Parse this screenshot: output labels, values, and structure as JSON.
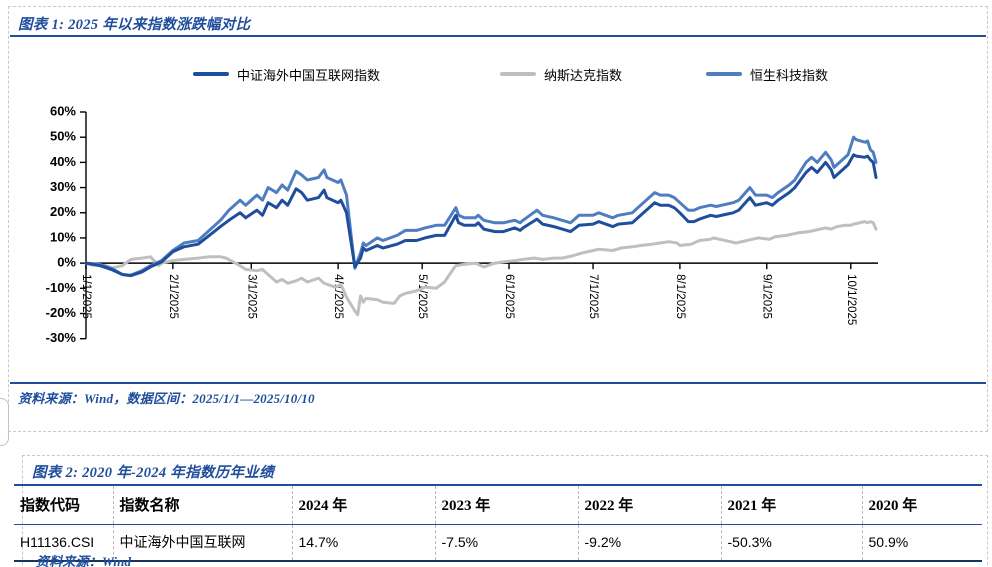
{
  "figure1": {
    "title": "图表 1: 2025 年以来指数涨跌幅对比",
    "source_note": "资料来源：Wind，数据区间：2025/1/1—2025/10/10",
    "legend": [
      {
        "label": "中证海外中国互联网指数",
        "color": "#1F4E9C"
      },
      {
        "label": "纳斯达克指数",
        "color": "#BFBFBF"
      },
      {
        "label": "恒生科技指数",
        "color": "#4E7EC0"
      }
    ]
  },
  "chart_data": {
    "type": "line",
    "title": "2025 年以来指数涨跌幅对比",
    "xlabel": "",
    "ylabel": "",
    "ylim": [
      -30,
      60
    ],
    "yticks": [
      60,
      50,
      40,
      30,
      20,
      10,
      0,
      -10,
      -20,
      -30
    ],
    "ytick_suffix": "%",
    "x_start_date": "2025/1/1",
    "x_end_date": "2025/10/10",
    "x_total_days": 282,
    "grid": false,
    "legend_position": "top",
    "xticks": [
      {
        "label": "1/1/2025",
        "day": 0
      },
      {
        "label": "2/1/2025",
        "day": 31
      },
      {
        "label": "3/1/2025",
        "day": 59
      },
      {
        "label": "4/1/2025",
        "day": 90
      },
      {
        "label": "5/1/2025",
        "day": 120
      },
      {
        "label": "6/1/2025",
        "day": 151
      },
      {
        "label": "7/1/2025",
        "day": 181
      },
      {
        "label": "8/1/2025",
        "day": 212
      },
      {
        "label": "9/1/2025",
        "day": 243
      },
      {
        "label": "10/1/2025",
        "day": 273
      }
    ],
    "series": [
      {
        "name": "中证海外中国互联网指数",
        "color": "#1F4E9C",
        "width": 3,
        "points_unit": "[days_since_2025_01_01, pct_change]",
        "points": [
          [
            0,
            0
          ],
          [
            5,
            -1
          ],
          [
            9,
            -2.5
          ],
          [
            13,
            -4.5
          ],
          [
            16,
            -5
          ],
          [
            20,
            -3.5
          ],
          [
            23,
            -1.5
          ],
          [
            27,
            0.5
          ],
          [
            31,
            4.5
          ],
          [
            35,
            6.5
          ],
          [
            40,
            7.5
          ],
          [
            44,
            11
          ],
          [
            48,
            14.5
          ],
          [
            51,
            17
          ],
          [
            55,
            20
          ],
          [
            57,
            18
          ],
          [
            61,
            21
          ],
          [
            63,
            19
          ],
          [
            65,
            24
          ],
          [
            68,
            22
          ],
          [
            70,
            25
          ],
          [
            72,
            23
          ],
          [
            75,
            29.5
          ],
          [
            77,
            28
          ],
          [
            79,
            25
          ],
          [
            83,
            26
          ],
          [
            85,
            29
          ],
          [
            86,
            26
          ],
          [
            90,
            24
          ],
          [
            91,
            25
          ],
          [
            93,
            20
          ],
          [
            96,
            -1.5
          ],
          [
            98,
            2
          ],
          [
            99,
            6
          ],
          [
            100,
            5
          ],
          [
            104,
            7
          ],
          [
            106,
            6
          ],
          [
            111,
            7.5
          ],
          [
            114,
            9
          ],
          [
            118,
            9
          ],
          [
            121,
            10
          ],
          [
            125,
            11
          ],
          [
            128,
            11
          ],
          [
            132,
            19
          ],
          [
            133,
            16
          ],
          [
            135,
            15
          ],
          [
            139,
            15
          ],
          [
            140,
            16
          ],
          [
            142,
            13.5
          ],
          [
            146,
            12.5
          ],
          [
            149,
            12.5
          ],
          [
            153,
            14
          ],
          [
            155,
            13
          ],
          [
            156,
            14
          ],
          [
            161,
            17.5
          ],
          [
            163,
            15.5
          ],
          [
            167,
            14.5
          ],
          [
            170,
            13.5
          ],
          [
            173,
            12.5
          ],
          [
            176,
            15
          ],
          [
            181,
            15.5
          ],
          [
            183,
            16.5
          ],
          [
            188,
            14.5
          ],
          [
            190,
            15.5
          ],
          [
            195,
            16
          ],
          [
            197,
            18
          ],
          [
            201,
            22
          ],
          [
            203,
            24
          ],
          [
            205,
            23
          ],
          [
            208,
            23
          ],
          [
            210,
            22
          ],
          [
            212,
            20
          ],
          [
            215,
            16.5
          ],
          [
            217,
            16.5
          ],
          [
            219,
            17.5
          ],
          [
            223,
            19
          ],
          [
            225,
            18.5
          ],
          [
            229,
            19.5
          ],
          [
            231,
            20
          ],
          [
            233,
            21
          ],
          [
            237,
            26
          ],
          [
            239,
            23
          ],
          [
            243,
            24
          ],
          [
            245,
            23
          ],
          [
            247,
            25
          ],
          [
            251,
            28
          ],
          [
            253,
            30
          ],
          [
            257,
            36
          ],
          [
            259,
            38
          ],
          [
            260,
            37
          ],
          [
            261,
            36
          ],
          [
            264,
            40
          ],
          [
            266,
            37
          ],
          [
            267,
            34
          ],
          [
            271,
            38
          ],
          [
            272,
            39
          ],
          [
            274,
            43
          ],
          [
            275,
            42.5
          ],
          [
            278,
            42
          ],
          [
            279,
            42.5
          ],
          [
            280,
            41
          ],
          [
            281,
            40
          ],
          [
            282,
            34
          ]
        ]
      },
      {
        "name": "纳斯达克指数",
        "color": "#BFBFBF",
        "width": 3,
        "points_unit": "[days_since_2025_01_01, pct_change]",
        "points": [
          [
            0,
            0
          ],
          [
            2,
            -0.7
          ],
          [
            7,
            -1
          ],
          [
            9,
            -2
          ],
          [
            13,
            -1
          ],
          [
            16,
            1.5
          ],
          [
            20,
            2
          ],
          [
            23,
            2.5
          ],
          [
            26,
            -1
          ],
          [
            27,
            0
          ],
          [
            31,
            1
          ],
          [
            35,
            1.5
          ],
          [
            40,
            2
          ],
          [
            44,
            2.5
          ],
          [
            48,
            2.5
          ],
          [
            50,
            2
          ],
          [
            55,
            -1
          ],
          [
            57,
            -2.5
          ],
          [
            61,
            -3
          ],
          [
            63,
            -2.5
          ],
          [
            65,
            -4.5
          ],
          [
            68,
            -7.5
          ],
          [
            70,
            -6.5
          ],
          [
            72,
            -8
          ],
          [
            75,
            -7
          ],
          [
            77,
            -6
          ],
          [
            79,
            -7.5
          ],
          [
            83,
            -6
          ],
          [
            85,
            -8
          ],
          [
            89,
            -9.5
          ],
          [
            91,
            -8.5
          ],
          [
            93,
            -13.5
          ],
          [
            96,
            -19
          ],
          [
            97,
            -20.5
          ],
          [
            98,
            -13
          ],
          [
            99,
            -15.5
          ],
          [
            100,
            -14
          ],
          [
            104,
            -14.5
          ],
          [
            106,
            -15.5
          ],
          [
            110,
            -16
          ],
          [
            112,
            -13
          ],
          [
            114,
            -12
          ],
          [
            118,
            -11
          ],
          [
            121,
            -9.5
          ],
          [
            125,
            -10
          ],
          [
            128,
            -7.5
          ],
          [
            131,
            -2.5
          ],
          [
            132,
            -1
          ],
          [
            135,
            -0.5
          ],
          [
            139,
            0
          ],
          [
            142,
            -1.5
          ],
          [
            146,
            0
          ],
          [
            149,
            0.5
          ],
          [
            153,
            1
          ],
          [
            156,
            1.5
          ],
          [
            160,
            2
          ],
          [
            163,
            1.5
          ],
          [
            167,
            2
          ],
          [
            170,
            2
          ],
          [
            174,
            3
          ],
          [
            177,
            4
          ],
          [
            181,
            5
          ],
          [
            183,
            5.5
          ],
          [
            188,
            5
          ],
          [
            191,
            6
          ],
          [
            195,
            6.5
          ],
          [
            198,
            7
          ],
          [
            202,
            7.5
          ],
          [
            205,
            8
          ],
          [
            208,
            8.5
          ],
          [
            211,
            8
          ],
          [
            212,
            7
          ],
          [
            216,
            7.5
          ],
          [
            219,
            9
          ],
          [
            223,
            9.5
          ],
          [
            224,
            10
          ],
          [
            226,
            9.5
          ],
          [
            230,
            8.5
          ],
          [
            232,
            8
          ],
          [
            236,
            9
          ],
          [
            238,
            9.5
          ],
          [
            240,
            10
          ],
          [
            244,
            9.5
          ],
          [
            246,
            10.5
          ],
          [
            250,
            11
          ],
          [
            252,
            11.5
          ],
          [
            254,
            12
          ],
          [
            258,
            12.5
          ],
          [
            260,
            13
          ],
          [
            264,
            14
          ],
          [
            266,
            13.5
          ],
          [
            268,
            14.5
          ],
          [
            271,
            15
          ],
          [
            273,
            15
          ],
          [
            274,
            15.5
          ],
          [
            278,
            16.5
          ],
          [
            279,
            16
          ],
          [
            280,
            16.5
          ],
          [
            281,
            16
          ],
          [
            282,
            13.5
          ]
        ]
      },
      {
        "name": "恒生科技指数",
        "color": "#4E7EC0",
        "width": 3,
        "points_unit": "[days_since_2025_01_01, pct_change]",
        "points": [
          [
            0,
            0
          ],
          [
            5,
            -0.5
          ],
          [
            9,
            -2
          ],
          [
            13,
            -4.5
          ],
          [
            16,
            -4.8
          ],
          [
            20,
            -3
          ],
          [
            23,
            -1
          ],
          [
            27,
            1
          ],
          [
            31,
            5
          ],
          [
            35,
            8
          ],
          [
            40,
            9
          ],
          [
            44,
            13
          ],
          [
            48,
            17
          ],
          [
            51,
            21
          ],
          [
            55,
            25
          ],
          [
            57,
            23
          ],
          [
            61,
            27
          ],
          [
            63,
            25
          ],
          [
            65,
            30
          ],
          [
            68,
            28
          ],
          [
            70,
            31
          ],
          [
            72,
            29
          ],
          [
            75,
            36.5
          ],
          [
            77,
            35
          ],
          [
            79,
            33
          ],
          [
            83,
            34
          ],
          [
            85,
            37
          ],
          [
            86,
            34
          ],
          [
            90,
            32
          ],
          [
            91,
            33
          ],
          [
            93,
            27
          ],
          [
            96,
            -2
          ],
          [
            98,
            4
          ],
          [
            99,
            8
          ],
          [
            100,
            7
          ],
          [
            104,
            10
          ],
          [
            106,
            9
          ],
          [
            111,
            11
          ],
          [
            114,
            13
          ],
          [
            118,
            13
          ],
          [
            121,
            14
          ],
          [
            125,
            15
          ],
          [
            128,
            15
          ],
          [
            132,
            22
          ],
          [
            133,
            19
          ],
          [
            135,
            18
          ],
          [
            139,
            18
          ],
          [
            140,
            19
          ],
          [
            142,
            17
          ],
          [
            146,
            16
          ],
          [
            149,
            16
          ],
          [
            153,
            17
          ],
          [
            155,
            16
          ],
          [
            156,
            17
          ],
          [
            161,
            21
          ],
          [
            163,
            19
          ],
          [
            167,
            18
          ],
          [
            170,
            17
          ],
          [
            173,
            16
          ],
          [
            176,
            19
          ],
          [
            181,
            19
          ],
          [
            183,
            20
          ],
          [
            188,
            18
          ],
          [
            190,
            19
          ],
          [
            195,
            20
          ],
          [
            197,
            22
          ],
          [
            201,
            26
          ],
          [
            203,
            28
          ],
          [
            205,
            27
          ],
          [
            208,
            27
          ],
          [
            210,
            26
          ],
          [
            212,
            24
          ],
          [
            215,
            21
          ],
          [
            217,
            21
          ],
          [
            219,
            22
          ],
          [
            223,
            23
          ],
          [
            225,
            22.5
          ],
          [
            229,
            23.5
          ],
          [
            231,
            24
          ],
          [
            233,
            25
          ],
          [
            237,
            30
          ],
          [
            239,
            27
          ],
          [
            243,
            27
          ],
          [
            245,
            26
          ],
          [
            247,
            28
          ],
          [
            251,
            31
          ],
          [
            253,
            33
          ],
          [
            257,
            40
          ],
          [
            259,
            42
          ],
          [
            260,
            41
          ],
          [
            261,
            40
          ],
          [
            264,
            44
          ],
          [
            266,
            41
          ],
          [
            267,
            38
          ],
          [
            271,
            42
          ],
          [
            272,
            43
          ],
          [
            274,
            50
          ],
          [
            275,
            49
          ],
          [
            278,
            48
          ],
          [
            279,
            48.5
          ],
          [
            280,
            45
          ],
          [
            281,
            44
          ],
          [
            282,
            40
          ]
        ]
      }
    ]
  },
  "figure2": {
    "title": "图表 2: 2020 年-2024 年指数历年业绩",
    "source_note": "资料来源：Wind",
    "table": {
      "headers": [
        "指数代码",
        "指数名称",
        "2024 年",
        "2023 年",
        "2022 年",
        "2021 年",
        "2020 年"
      ],
      "rows": [
        [
          "H11136.CSI",
          "中证海外中国互联网",
          "14.7%",
          "-7.5%",
          "-9.2%",
          "-50.3%",
          "50.9%"
        ]
      ]
    }
  }
}
